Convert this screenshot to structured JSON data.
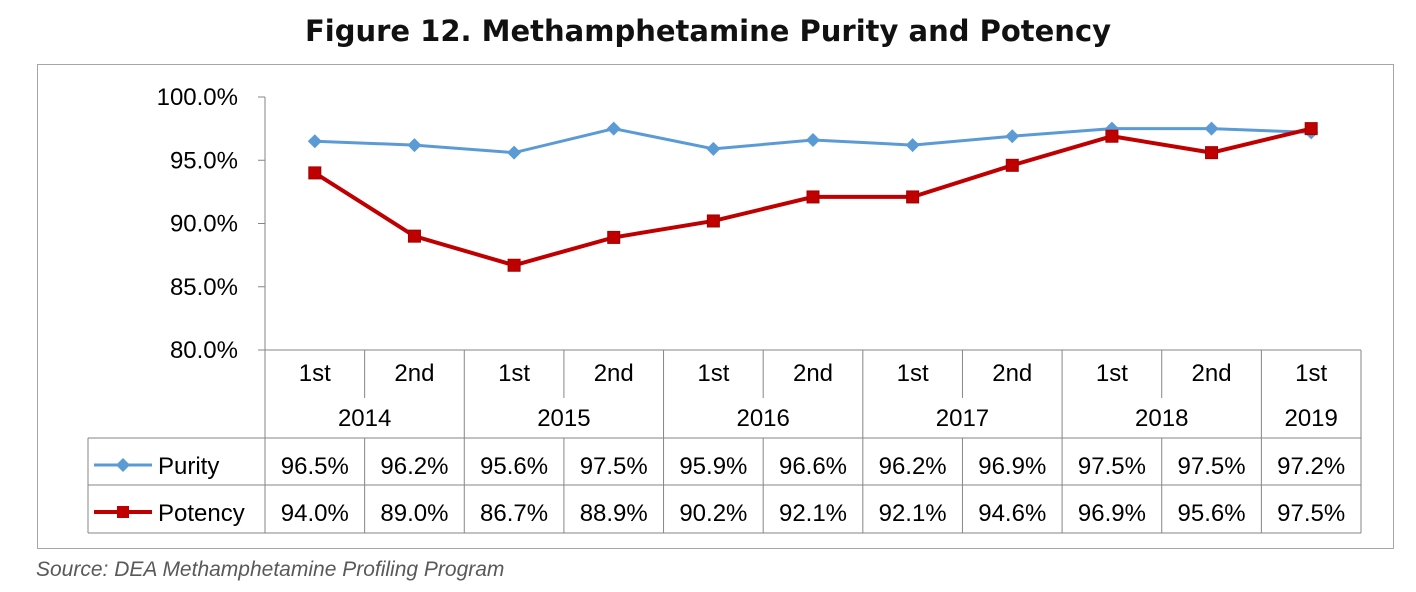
{
  "figure": {
    "title": "Figure 12. Methamphetamine Purity and Potency",
    "source": "Source: DEA Methamphetamine Profiling Program"
  },
  "chart_data": {
    "type": "line",
    "categories": [
      {
        "half": "1st",
        "year": "2014"
      },
      {
        "half": "2nd",
        "year": "2014"
      },
      {
        "half": "1st",
        "year": "2015"
      },
      {
        "half": "2nd",
        "year": "2015"
      },
      {
        "half": "1st",
        "year": "2016"
      },
      {
        "half": "2nd",
        "year": "2016"
      },
      {
        "half": "1st",
        "year": "2017"
      },
      {
        "half": "2nd",
        "year": "2017"
      },
      {
        "half": "1st",
        "year": "2018"
      },
      {
        "half": "2nd",
        "year": "2018"
      },
      {
        "half": "1st",
        "year": "2019"
      }
    ],
    "years": [
      {
        "label": "2014",
        "span": 2
      },
      {
        "label": "2015",
        "span": 2
      },
      {
        "label": "2016",
        "span": 2
      },
      {
        "label": "2017",
        "span": 2
      },
      {
        "label": "2018",
        "span": 2
      },
      {
        "label": "2019",
        "span": 1
      }
    ],
    "series": [
      {
        "name": "Purity",
        "color": "#5B9BD5",
        "marker": "diamond",
        "values": [
          96.5,
          96.2,
          95.6,
          97.5,
          95.9,
          96.6,
          96.2,
          96.9,
          97.5,
          97.5,
          97.2
        ],
        "labels": [
          "96.5%",
          "96.2%",
          "95.6%",
          "97.5%",
          "95.9%",
          "96.6%",
          "96.2%",
          "96.9%",
          "97.5%",
          "97.5%",
          "97.2%"
        ]
      },
      {
        "name": "Potency",
        "color": "#C00000",
        "marker": "square",
        "values": [
          94.0,
          89.0,
          86.7,
          88.9,
          90.2,
          92.1,
          92.1,
          94.6,
          96.9,
          95.6,
          97.5
        ],
        "labels": [
          "94.0%",
          "89.0%",
          "86.7%",
          "88.9%",
          "90.2%",
          "92.1%",
          "92.1%",
          "94.6%",
          "96.9%",
          "95.6%",
          "97.5%"
        ]
      }
    ],
    "yticks": [
      80,
      85,
      90,
      95,
      100
    ],
    "ytick_labels": [
      "80.0%",
      "85.0%",
      "90.0%",
      "95.0%",
      "100.0%"
    ],
    "ylim": [
      80,
      100
    ],
    "grid": false,
    "legend": "data-table"
  }
}
